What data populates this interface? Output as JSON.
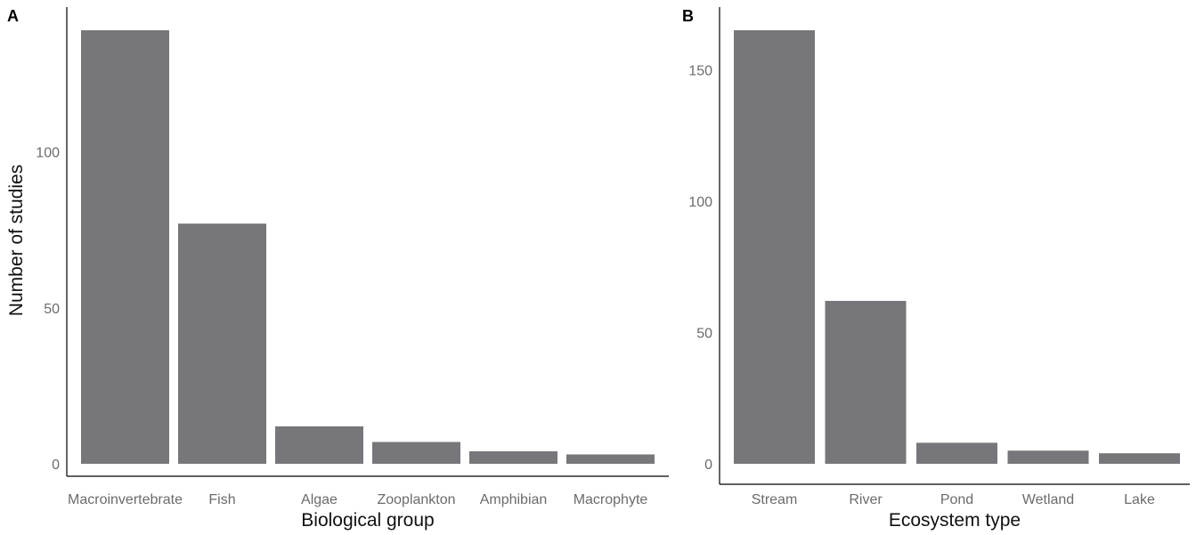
{
  "colors": {
    "bar": "#77777b",
    "axis": "#000000",
    "tick_text": "#6b6b6b"
  },
  "chart_data": [
    {
      "type": "bar",
      "panel_label": "A",
      "title": "",
      "xlabel": "Biological group",
      "ylabel": "Number of studies",
      "categories": [
        "Macroinvertebrate",
        "Fish",
        "Algae",
        "Zooplankton",
        "Amphibian",
        "Macrophyte"
      ],
      "values": [
        139,
        77,
        12,
        7,
        4,
        3
      ],
      "yticks": [
        0,
        50,
        100
      ],
      "ylim": [
        0,
        139
      ],
      "grid": false
    },
    {
      "type": "bar",
      "panel_label": "B",
      "title": "",
      "xlabel": "Ecosystem type",
      "ylabel": "",
      "categories": [
        "Stream",
        "River",
        "Pond",
        "Wetland",
        "Lake"
      ],
      "values": [
        165,
        62,
        8,
        5,
        4
      ],
      "yticks": [
        0,
        50,
        100,
        150
      ],
      "ylim": [
        0,
        165
      ],
      "grid": false
    }
  ]
}
